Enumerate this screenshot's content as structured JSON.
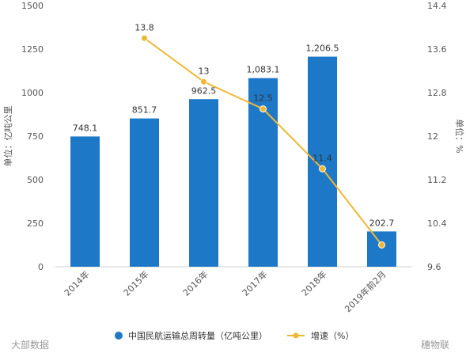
{
  "chart_data": {
    "type": "bar",
    "categories": [
      "2014年",
      "2015年",
      "2016年",
      "2017年",
      "2018年",
      "2019年前2月"
    ],
    "series": [
      {
        "name": "中国民航运输总周转量（亿吨公里）",
        "type": "bar",
        "axis": "left",
        "color": "#1e78c8",
        "values": [
          748.1,
          851.7,
          962.5,
          1083.1,
          1206.5,
          202.7
        ],
        "labels": [
          "748.1",
          "851.7",
          "962.5",
          "1,083.1",
          "1,206.5",
          "202.7"
        ]
      },
      {
        "name": "增速（%）",
        "type": "line",
        "axis": "right",
        "color": "#f0b733",
        "values": [
          null,
          13.8,
          13,
          12.5,
          11.4,
          10.0
        ],
        "labels": [
          "",
          "13.8",
          "13",
          "12.5",
          "11.4",
          ""
        ]
      }
    ],
    "ylabel": "单位：亿吨公里",
    "y2label": "单位：%",
    "ylim": [
      0,
      1500
    ],
    "yticks": [
      "0",
      "250",
      "500",
      "750",
      "1000",
      "1250",
      "1500"
    ],
    "y2lim": [
      9.6,
      14.4
    ],
    "y2ticks": [
      "9.6",
      "10.4",
      "11.2",
      "12",
      "12.8",
      "13.6",
      "14.4"
    ],
    "grid": false,
    "legend": "bottom"
  },
  "watermark": {
    "source": "大部数据",
    "brand": "穗物联"
  }
}
